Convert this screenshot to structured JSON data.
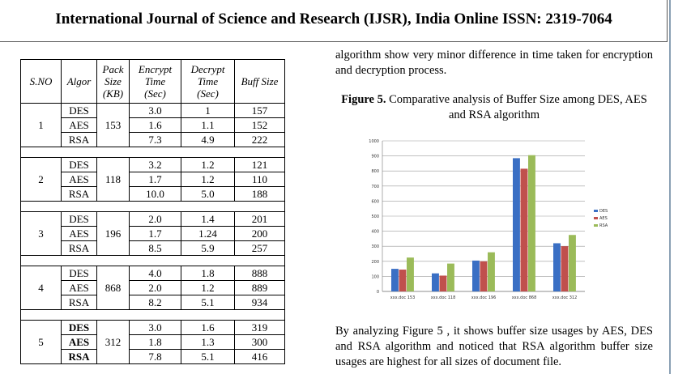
{
  "header": {
    "title": "International Journal of Science and Research (IJSR), India Online ISSN: 2319-7064"
  },
  "table": {
    "headers": [
      "S.NO",
      "Algor",
      "Pack Size (KB)",
      "Encrypt Time (Sec)",
      "Decrypt Time (Sec)",
      "Buff Size"
    ],
    "header_lines": {
      "sno": "S.NO",
      "algor": "Algor",
      "pack": [
        "Pack",
        "Size",
        "(KB)"
      ],
      "enc": [
        "Encrypt",
        "Time",
        "(Sec)"
      ],
      "dec": [
        "Decrypt",
        "Time",
        "(Sec)"
      ],
      "buff": "Buff Size"
    },
    "groups": [
      {
        "sno": "1",
        "pack": "153",
        "rows": [
          {
            "algor": "DES",
            "enc": "3.0",
            "dec": "1",
            "buff": "157"
          },
          {
            "algor": "AES",
            "enc": "1.6",
            "dec": "1.1",
            "buff": "152"
          },
          {
            "algor": "RSA",
            "enc": "7.3",
            "dec": "4.9",
            "buff": "222"
          }
        ]
      },
      {
        "sno": "2",
        "pack": "118",
        "rows": [
          {
            "algor": "DES",
            "enc": "3.2",
            "dec": "1.2",
            "buff": "121"
          },
          {
            "algor": "AES",
            "enc": "1.7",
            "dec": "1.2",
            "buff": "110"
          },
          {
            "algor": "RSA",
            "enc": "10.0",
            "dec": "5.0",
            "buff": "188"
          }
        ]
      },
      {
        "sno": "3",
        "pack": "196",
        "rows": [
          {
            "algor": "DES",
            "enc": "2.0",
            "dec": "1.4",
            "buff": "201"
          },
          {
            "algor": "AES",
            "enc": "1.7",
            "dec": "1.24",
            "buff": "200"
          },
          {
            "algor": "RSA",
            "enc": "8.5",
            "dec": "5.9",
            "buff": "257"
          }
        ]
      },
      {
        "sno": "4",
        "pack": "868",
        "rows": [
          {
            "algor": "DES",
            "enc": "4.0",
            "dec": "1.8",
            "buff": "888"
          },
          {
            "algor": "AES",
            "enc": "2.0",
            "dec": "1.2",
            "buff": "889"
          },
          {
            "algor": "RSA",
            "enc": "8.2",
            "dec": "5.1",
            "buff": "934"
          }
        ]
      },
      {
        "sno": "5",
        "pack": "312",
        "rows": [
          {
            "algor": "DES",
            "enc": "3.0",
            "dec": "1.6",
            "buff": "319"
          },
          {
            "algor": "AES",
            "enc": "1.8",
            "dec": "1.3",
            "buff": "300"
          },
          {
            "algor": "RSA",
            "enc": "7.8",
            "dec": "5.1",
            "buff": "416"
          }
        ]
      }
    ]
  },
  "text": {
    "para_top": "algorithm show very minor difference in time taken for encryption and decryption process.",
    "caption_label": "Figure 5.",
    "caption_text": " Comparative analysis of Buffer Size among DES, AES and RSA algorithm",
    "para_bottom": "By analyzing Figure 5 , it shows buffer size usages by AES, DES and RSA algorithm and noticed that RSA algorithm buffer size usages are highest for all sizes of document file."
  },
  "chart_data": {
    "type": "bar",
    "categories": [
      "xxx.doc 153",
      "xxx.doc 118",
      "xxx.doc 196",
      "xxx.doc 868",
      "xxx.doc 312"
    ],
    "series": [
      {
        "name": "DES",
        "values": [
          150,
          120,
          205,
          885,
          320
        ],
        "color": "#3a6fc4"
      },
      {
        "name": "AES",
        "values": [
          145,
          105,
          200,
          815,
          300
        ],
        "color": "#c0504d"
      },
      {
        "name": "RSA",
        "values": [
          225,
          185,
          260,
          905,
          375
        ],
        "color": "#9bbb59"
      }
    ],
    "ylim": [
      0,
      1000
    ],
    "yticks": [
      "0",
      "100",
      "200",
      "300",
      "400",
      "500",
      "600",
      "700",
      "800",
      "900",
      "1000"
    ],
    "grid": true,
    "legend": "right"
  }
}
